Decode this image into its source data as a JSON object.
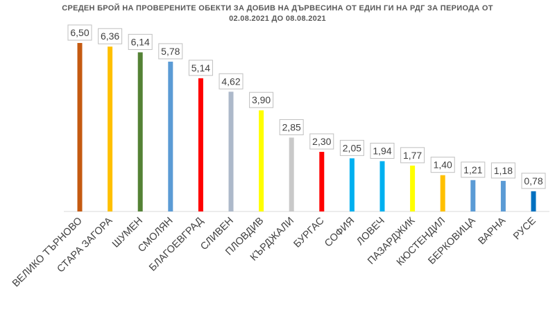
{
  "chart_data": {
    "type": "bar",
    "title_line1": "СРЕДЕН БРОЙ НА ПРОВЕРЕНИТЕ ОБЕКТИ ЗА ДОБИВ НА ДЪРВЕСИНА ОТ ЕДИН ГИ НА РДГ ЗА ПЕРИОДА ОТ",
    "title_line2": "02.08.2021 ДО 08.08.2021",
    "categories": [
      "ВЕЛИКО ТЪРНОВО",
      "СТАРА ЗАГОРА",
      "ШУМЕН",
      "СМОЛЯН",
      "БЛАГОЕВГРАД",
      "СЛИВЕН",
      "ПЛОВДИВ",
      "КЪРДЖАЛИ",
      "БУРГАС",
      "СОФИЯ",
      "ЛОВЕЧ",
      "ПАЗАРДЖИК",
      "КЮСТЕНДИЛ",
      "БЕРКОВИЦА",
      "ВАРНА",
      "РУСЕ"
    ],
    "values": [
      6.5,
      6.36,
      6.14,
      5.78,
      5.14,
      4.62,
      3.9,
      2.85,
      2.3,
      2.05,
      1.94,
      1.77,
      1.4,
      1.21,
      1.18,
      0.78
    ],
    "value_labels": [
      "6,50",
      "6,36",
      "6,14",
      "5,78",
      "5,14",
      "4,62",
      "3,90",
      "2,85",
      "2,30",
      "2,05",
      "1,94",
      "1,77",
      "1,40",
      "1,21",
      "1,18",
      "0,78"
    ],
    "colors": [
      "#c55a11",
      "#ffc000",
      "#548235",
      "#5b9bd5",
      "#ff0000",
      "#adb9ca",
      "#ffff00",
      "#c9c9c9",
      "#ff0000",
      "#00b0f0",
      "#00b0f0",
      "#ffff00",
      "#ffc000",
      "#5b9bd5",
      "#5b9bd5",
      "#0070c0"
    ],
    "ylim": [
      0,
      7
    ],
    "grid": false,
    "legend": "none"
  }
}
